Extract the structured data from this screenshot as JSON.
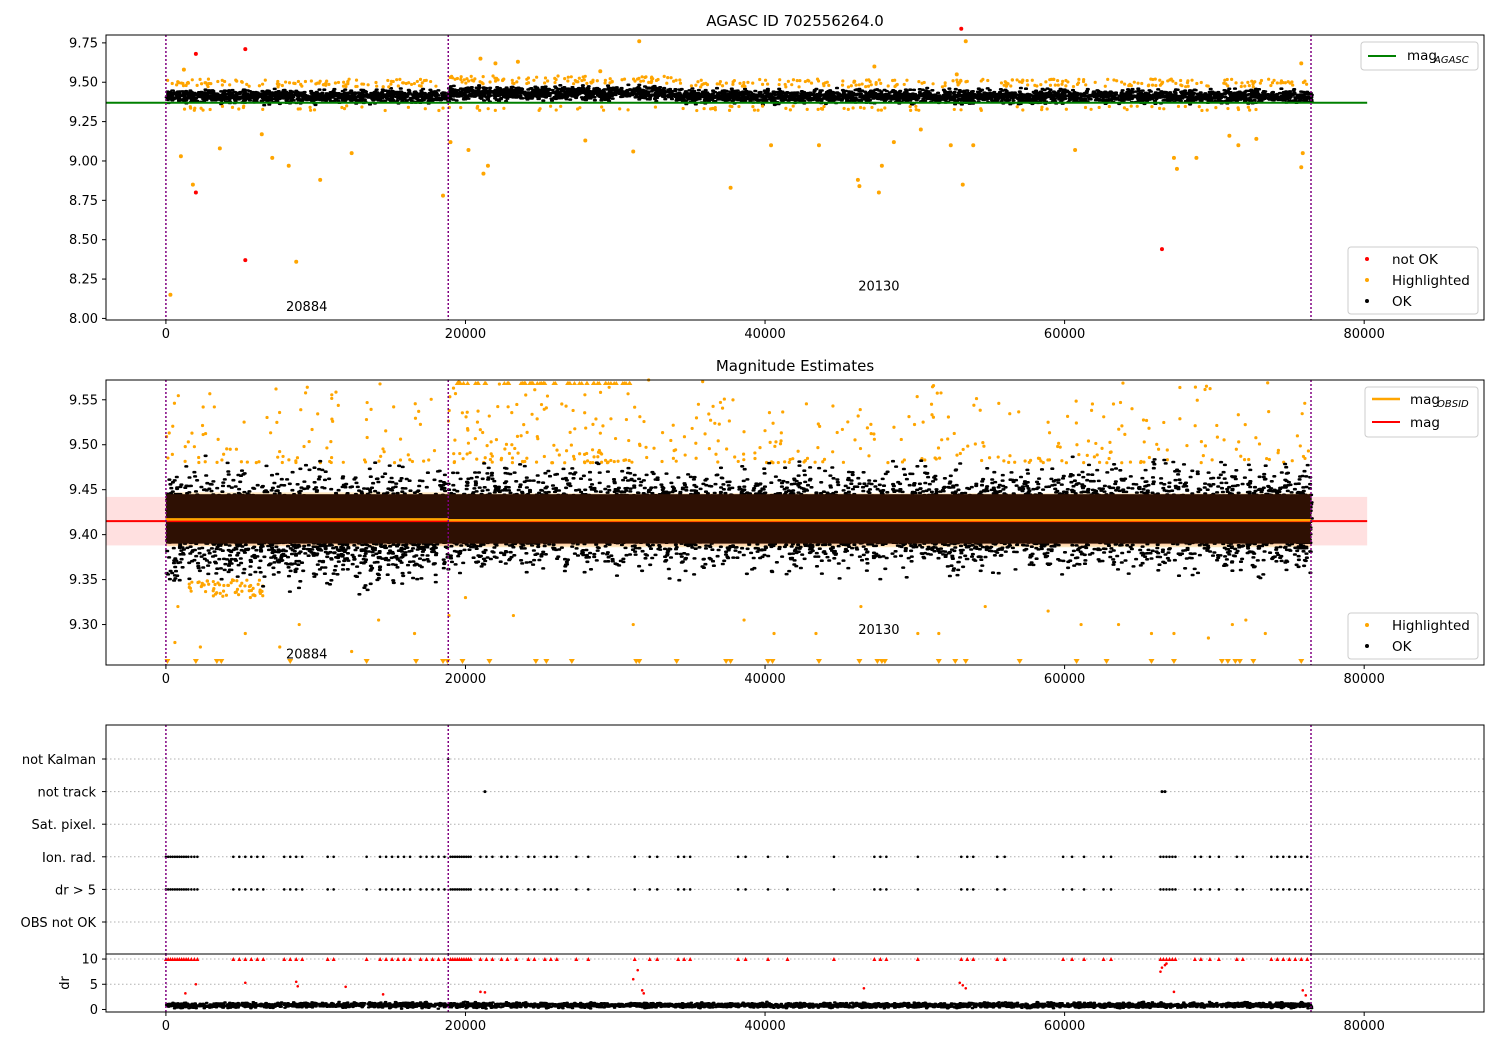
{
  "chart_data": [
    {
      "type": "scatter",
      "title": "AGASC ID 702556264.0",
      "xlim": [
        -4000,
        88000
      ],
      "ylim": [
        7.99,
        9.8
      ],
      "xticks": [
        0,
        20000,
        40000,
        60000,
        80000
      ],
      "yticks": [
        "8.00",
        "8.25",
        "8.50",
        "8.75",
        "9.00",
        "9.25",
        "9.50",
        "9.75"
      ],
      "obs_boundaries": [
        0,
        18850,
        76450
      ],
      "obsid_labels": [
        {
          "text": "20884",
          "x": 9400,
          "y": 8.08
        },
        {
          "text": "20130",
          "x": 47600,
          "y": 8.21
        }
      ],
      "reference_line": {
        "name": "mag_AGASC",
        "y": 9.37,
        "x_range": [
          -4000,
          80200
        ],
        "color": "#008000"
      },
      "ok_band": [
        {
          "x_range": [
            0,
            18850
          ],
          "y_range": [
            9.35,
            9.47
          ]
        },
        {
          "x_range": [
            18850,
            34000
          ],
          "y_range": [
            9.37,
            9.49
          ]
        },
        {
          "x_range": [
            34000,
            76450
          ],
          "y_range": [
            9.35,
            9.47
          ]
        }
      ],
      "series": [
        {
          "name": "not OK",
          "color": "#ff0000",
          "points": [
            [
              2000,
              9.68
            ],
            [
              5300,
              9.71
            ],
            [
              2000,
              8.8
            ],
            [
              5300,
              8.37
            ],
            [
              53100,
              9.84
            ],
            [
              66500,
              8.44
            ]
          ]
        },
        {
          "name": "Highlighted",
          "color": "#ffa500",
          "points": [
            [
              1000,
              9.03
            ],
            [
              1800,
              8.85
            ],
            [
              3600,
              9.08
            ],
            [
              6400,
              9.17
            ],
            [
              7100,
              9.02
            ],
            [
              8200,
              8.97
            ],
            [
              8700,
              8.36
            ],
            [
              10300,
              8.88
            ],
            [
              12400,
              9.05
            ],
            [
              18500,
              8.78
            ],
            [
              19000,
              9.12
            ],
            [
              20200,
              9.07
            ],
            [
              21200,
              8.92
            ],
            [
              21500,
              8.97
            ],
            [
              28000,
              9.13
            ],
            [
              31200,
              9.06
            ],
            [
              31600,
              9.76
            ],
            [
              37700,
              8.83
            ],
            [
              40400,
              9.1
            ],
            [
              43600,
              9.1
            ],
            [
              46200,
              8.88
            ],
            [
              46300,
              8.84
            ],
            [
              47600,
              8.8
            ],
            [
              47800,
              8.97
            ],
            [
              48600,
              9.12
            ],
            [
              50400,
              9.2
            ],
            [
              52400,
              9.1
            ],
            [
              53200,
              8.85
            ],
            [
              53400,
              9.76
            ],
            [
              53900,
              9.1
            ],
            [
              60700,
              9.07
            ],
            [
              67300,
              9.02
            ],
            [
              67500,
              8.95
            ],
            [
              68800,
              9.02
            ],
            [
              71000,
              9.16
            ],
            [
              71600,
              9.1
            ],
            [
              72800,
              9.14
            ],
            [
              75800,
              8.96
            ],
            [
              75900,
              9.05
            ],
            [
              75800,
              9.62
            ],
            [
              300,
              8.15
            ],
            [
              21000,
              9.65
            ],
            [
              22000,
              9.62
            ],
            [
              29000,
              9.57
            ],
            [
              47300,
              9.6
            ],
            [
              1200,
              9.58
            ],
            [
              23500,
              9.63
            ],
            [
              52800,
              9.55
            ]
          ]
        }
      ],
      "legends": {
        "upper_right": [
          "mag_AGASC"
        ],
        "lower_right": [
          "not OK",
          "Highlighted",
          "OK"
        ]
      }
    },
    {
      "type": "scatter",
      "title": "Magnitude Estimates",
      "xlim": [
        -4000,
        88000
      ],
      "ylim": [
        9.255,
        9.572
      ],
      "xticks": [
        0,
        20000,
        40000,
        60000,
        80000
      ],
      "yticks": [
        "9.30",
        "9.35",
        "9.40",
        "9.45",
        "9.50",
        "9.55"
      ],
      "obs_boundaries": [
        0,
        18850,
        76450
      ],
      "obsid_labels": [
        {
          "text": "20884",
          "x": 9400,
          "y": 9.268
        },
        {
          "text": "20130",
          "x": 47600,
          "y": 9.295
        }
      ],
      "mean_mag": {
        "name": "mag",
        "y": 9.415,
        "x_range": [
          -4000,
          80200
        ],
        "band": [
          9.388,
          9.442
        ],
        "color": "#ff0000"
      },
      "obsid_mag": [
        {
          "name": "mag_OBSID",
          "y": 9.417,
          "x_range": [
            0,
            18850
          ],
          "band": [
            9.387,
            9.447
          ]
        },
        {
          "name": "mag_OBSID",
          "y": 9.416,
          "x_range": [
            18850,
            76450
          ],
          "band": [
            9.386,
            9.446
          ]
        }
      ],
      "ok_band": [
        {
          "x_range": [
            0,
            18850
          ],
          "y_range": [
            9.33,
            9.49
          ]
        },
        {
          "x_range": [
            18850,
            76450
          ],
          "y_range": [
            9.345,
            9.49
          ]
        }
      ],
      "highlighted_upper_range": [
        9.48,
        9.572
      ],
      "highlighted_lower_points": [
        [
          600,
          9.28
        ],
        [
          800,
          9.32
        ],
        [
          2300,
          9.275
        ],
        [
          3200,
          9.34
        ],
        [
          5300,
          9.29
        ],
        [
          7600,
          9.275
        ],
        [
          8900,
          9.3
        ],
        [
          12400,
          9.27
        ],
        [
          14200,
          9.305
        ],
        [
          16600,
          9.29
        ],
        [
          18900,
          9.31
        ],
        [
          20000,
          9.33
        ],
        [
          23200,
          9.31
        ],
        [
          31200,
          9.3
        ],
        [
          38600,
          9.305
        ],
        [
          40600,
          9.29
        ],
        [
          43400,
          9.29
        ],
        [
          46400,
          9.32
        ],
        [
          50200,
          9.29
        ],
        [
          51600,
          9.29
        ],
        [
          54700,
          9.32
        ],
        [
          58900,
          9.315
        ],
        [
          61100,
          9.3
        ],
        [
          63600,
          9.3
        ],
        [
          65800,
          9.29
        ],
        [
          67300,
          9.29
        ],
        [
          69600,
          9.285
        ],
        [
          71200,
          9.3
        ],
        [
          72100,
          9.305
        ],
        [
          73400,
          9.29
        ]
      ],
      "triangles_at_bottom_x": [
        100,
        2000,
        3400,
        3700,
        8300,
        13400,
        16700,
        18500,
        18800,
        19800,
        21600,
        24700,
        25400,
        27100,
        31400,
        31600,
        34100,
        37400,
        37700,
        40200,
        40500,
        43600,
        46300,
        47500,
        47800,
        48000,
        51600,
        52700,
        53400,
        57000,
        60800,
        62800,
        65800,
        67300,
        70500,
        70900,
        71400,
        71700,
        72600,
        75800
      ],
      "legends": {
        "upper_right": [
          "mag_OBSID",
          "mag"
        ],
        "lower_right": [
          "Highlighted",
          "OK"
        ]
      }
    },
    {
      "type": "scatter",
      "title": "",
      "xlim": [
        -4000,
        88000
      ],
      "xticks": [
        0,
        20000,
        40000,
        60000,
        80000
      ],
      "categories": [
        "not Kalman",
        "not track",
        "Sat. pixel.",
        "Ion. rad.",
        "dr > 5",
        "OBS not OK"
      ],
      "obs_boundaries": [
        0,
        18850,
        76450
      ],
      "flag_x": [
        0,
        150,
        300,
        450,
        600,
        750,
        900,
        1050,
        1200,
        1350,
        1500,
        1700,
        1900,
        2100,
        4500,
        4900,
        5300,
        5700,
        6100,
        6500,
        7900,
        8300,
        8700,
        9100,
        10800,
        11200,
        13400,
        14300,
        14700,
        15100,
        15500,
        15900,
        16300,
        17000,
        17400,
        17800,
        18200,
        18600,
        19000,
        19150,
        19300,
        19450,
        19600,
        19750,
        19900,
        20050,
        20200,
        20350,
        21000,
        21400,
        21800,
        22400,
        22800,
        23400,
        24200,
        24600,
        25300,
        25700,
        26100,
        27400,
        28200,
        31300,
        32300,
        32800,
        34200,
        34600,
        35000,
        38200,
        38700,
        40200,
        41500,
        44600,
        47300,
        47700,
        48100,
        50200,
        53100,
        53500,
        53900,
        55500,
        56000,
        59900,
        60500,
        61300,
        62600,
        63100,
        66400,
        66600,
        66800,
        67000,
        67200,
        67400,
        68700,
        69100,
        69700,
        70300,
        71500,
        71900,
        73800,
        74200,
        74600,
        75000,
        75400,
        75800,
        76200
      ],
      "not_kalman_x": [
        18850
      ],
      "not_track_x": [
        21300,
        66500,
        66700
      ]
    },
    {
      "type": "scatter",
      "title": "",
      "ylabel": "dr",
      "xlim": [
        -4000,
        88000
      ],
      "ylim": [
        -0.5,
        11
      ],
      "xticks": [
        0,
        20000,
        40000,
        60000,
        80000
      ],
      "yticks": [
        "0",
        "5",
        "10"
      ],
      "obs_boundaries": [
        0,
        18850,
        76450
      ],
      "ok_band": {
        "x_range": [
          0,
          76450
        ],
        "y_range": [
          0.1,
          1.6
        ]
      },
      "red_points": [
        [
          1300,
          3.2
        ],
        [
          2000,
          5.0
        ],
        [
          5300,
          5.3
        ],
        [
          8700,
          5.5
        ],
        [
          8800,
          4.6
        ],
        [
          12000,
          4.5
        ],
        [
          14500,
          3.0
        ],
        [
          21000,
          3.5
        ],
        [
          21300,
          3.4
        ],
        [
          31200,
          6.0
        ],
        [
          31500,
          7.8
        ],
        [
          31800,
          3.8
        ],
        [
          31900,
          3.2
        ],
        [
          46600,
          4.2
        ],
        [
          53000,
          5.3
        ],
        [
          53200,
          4.8
        ],
        [
          53400,
          4.2
        ],
        [
          66400,
          7.5
        ],
        [
          66500,
          8.3
        ],
        [
          66700,
          8.8
        ],
        [
          66800,
          9.1
        ],
        [
          67300,
          3.5
        ],
        [
          75900,
          3.8
        ],
        [
          76100,
          2.8
        ]
      ],
      "capped_at": 10
    }
  ]
}
